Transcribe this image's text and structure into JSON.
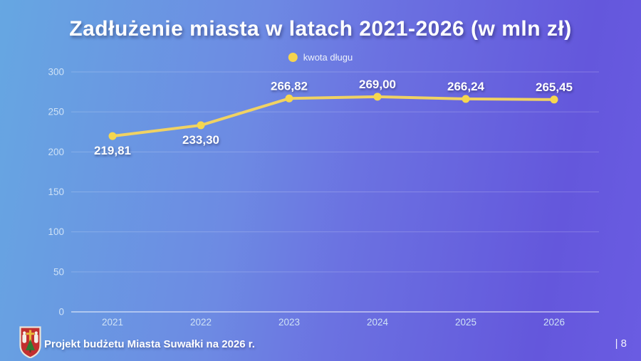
{
  "title": "Zadłużenie miasta w latach 2021-2026 (w mln zł)",
  "legend": {
    "label": "kwota długu",
    "marker_color": "#f5d44f"
  },
  "chart_data": {
    "type": "line",
    "title": "Zadłużenie miasta w latach 2021-2026 (w mln zł)",
    "categories": [
      "2021",
      "2022",
      "2023",
      "2024",
      "2025",
      "2026"
    ],
    "series": [
      {
        "name": "kwota długu",
        "values": [
          219.81,
          233.3,
          266.82,
          269.0,
          266.24,
          265.45
        ]
      }
    ],
    "value_labels": [
      "219,81",
      "233,30",
      "266,82",
      "269,00",
      "266,24",
      "265,45"
    ],
    "label_positions": [
      "below",
      "below",
      "above",
      "above",
      "above",
      "above"
    ],
    "xlabel": "",
    "ylabel": "",
    "ylim": [
      0,
      300
    ],
    "yticks": [
      0,
      50,
      100,
      150,
      200,
      250,
      300
    ],
    "grid": true,
    "legend_position": "top-center",
    "line_color": "#f0d263",
    "marker_color": "#f6d74e"
  },
  "footer": {
    "text": "Projekt budżetu Miasta Suwałki na 2026 r.",
    "page_number": "| 8",
    "logo": "suwalki-coat-of-arms"
  },
  "colors": {
    "bg_left": "#66a7e2",
    "bg_right": "#6457dc",
    "axis_text": "#cfe2f6",
    "value_label_text": "#ffffff"
  }
}
